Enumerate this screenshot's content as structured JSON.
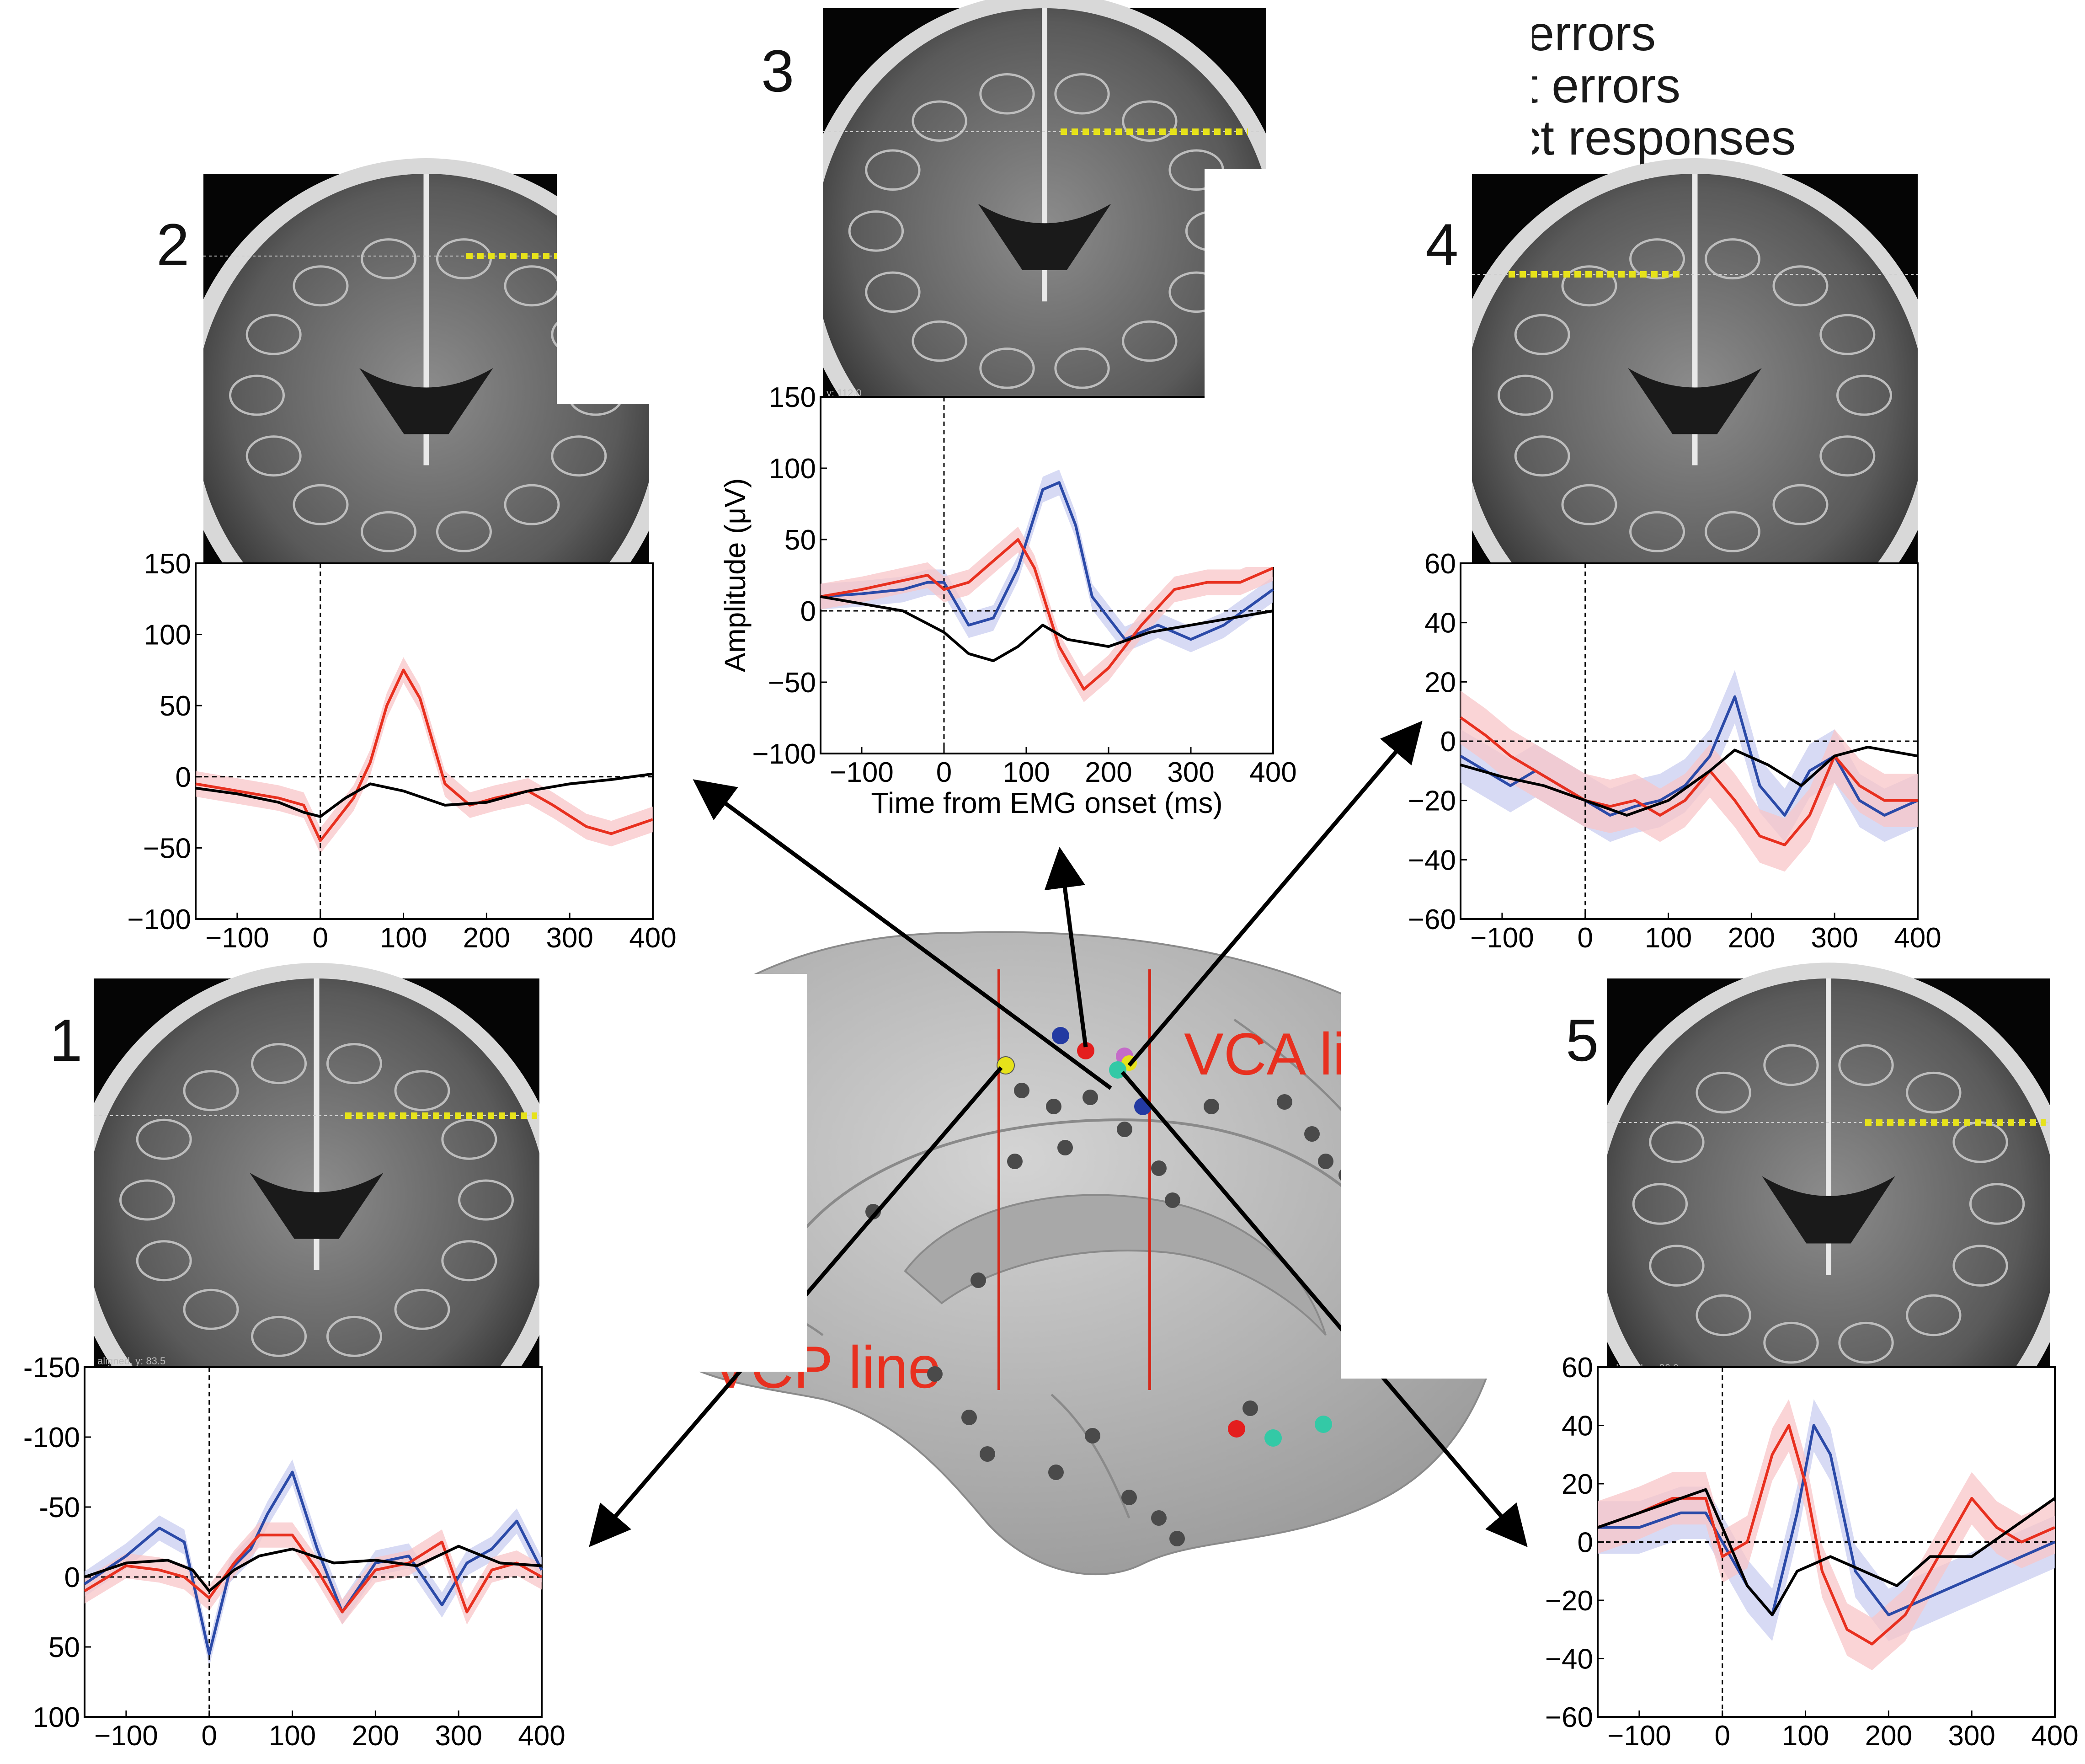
{
  "figure": {
    "legend": [
      {
        "label": "overt errors",
        "color": "#2b4aa8"
      },
      {
        "label": "covert errors",
        "color": "#e8301f"
      },
      {
        "label": "correct responses",
        "color": "#000000"
      }
    ],
    "brain_labels": {
      "vca": "VCA line",
      "vcp": "VCP line"
    },
    "colors": {
      "overt": "#2b4aa8",
      "covert": "#e8301f",
      "correct": "#000000",
      "overt_band": "#c9cdf0",
      "covert_band": "#f8c6c8",
      "mri_marker": "#e6e21a",
      "brain": "#b9b9b9"
    }
  },
  "chart_data": [
    {
      "panel": "1",
      "type": "line",
      "xlabel": "",
      "ylabel": "",
      "xlim": [
        -150,
        400
      ],
      "ylim": [
        100,
        -150
      ],
      "inverted_y": true,
      "xticks": [
        "−100",
        "0",
        "100",
        "200",
        "300",
        "400"
      ],
      "yticks": [
        "-150",
        "-100",
        "-50",
        "0",
        "50",
        "100"
      ],
      "series": [
        {
          "name": "overt errors",
          "x": [
            -150,
            -100,
            -60,
            -30,
            0,
            25,
            50,
            70,
            100,
            130,
            160,
            200,
            240,
            280,
            310,
            340,
            370,
            400
          ],
          "y": [
            5,
            -15,
            -35,
            -25,
            55,
            -5,
            -20,
            -45,
            -75,
            -20,
            25,
            -10,
            -15,
            20,
            -10,
            -20,
            -40,
            -5
          ]
        },
        {
          "name": "covert errors",
          "x": [
            -150,
            -100,
            -60,
            -30,
            0,
            30,
            60,
            100,
            130,
            160,
            200,
            240,
            280,
            310,
            340,
            370,
            400
          ],
          "y": [
            10,
            -8,
            -5,
            0,
            15,
            -10,
            -30,
            -30,
            -5,
            25,
            -5,
            -10,
            -25,
            25,
            -5,
            -10,
            0
          ]
        },
        {
          "name": "correct responses",
          "x": [
            -150,
            -100,
            -50,
            -20,
            0,
            30,
            60,
            100,
            150,
            200,
            250,
            300,
            350,
            400
          ],
          "y": [
            0,
            -10,
            -12,
            -5,
            10,
            -5,
            -15,
            -20,
            -10,
            -12,
            -8,
            -22,
            -10,
            -8
          ]
        }
      ],
      "mri_label": "aligned, y: 83.5"
    },
    {
      "panel": "2",
      "type": "line",
      "xlabel": "",
      "ylabel": "",
      "xlim": [
        -150,
        400
      ],
      "ylim": [
        -100,
        150
      ],
      "xticks": [
        "−100",
        "0",
        "100",
        "200",
        "300",
        "400"
      ],
      "yticks": [
        "150",
        "100",
        "50",
        "0",
        "−50",
        "−100"
      ],
      "series": [
        {
          "name": "covert errors",
          "x": [
            -150,
            -100,
            -50,
            -20,
            0,
            20,
            40,
            60,
            80,
            100,
            120,
            150,
            180,
            210,
            250,
            280,
            320,
            350,
            400
          ],
          "y": [
            -5,
            -10,
            -15,
            -20,
            -45,
            -30,
            -15,
            10,
            50,
            75,
            55,
            -5,
            -20,
            -15,
            -10,
            -20,
            -35,
            -40,
            -30
          ]
        },
        {
          "name": "correct responses",
          "x": [
            -150,
            -100,
            -50,
            -20,
            0,
            30,
            60,
            100,
            150,
            200,
            250,
            300,
            350,
            400
          ],
          "y": [
            -8,
            -12,
            -18,
            -25,
            -28,
            -15,
            -5,
            -10,
            -20,
            -18,
            -10,
            -5,
            -2,
            2
          ]
        }
      ],
      "mri_label": ""
    },
    {
      "panel": "3",
      "type": "line",
      "xlabel": "Time from EMG onset (ms)",
      "ylabel": "Amplitude (μV)",
      "xlim": [
        -150,
        400
      ],
      "ylim": [
        -100,
        150
      ],
      "xticks": [
        "−100",
        "0",
        "100",
        "200",
        "300",
        "400"
      ],
      "yticks": [
        "150",
        "100",
        "50",
        "0",
        "−50",
        "−100"
      ],
      "series": [
        {
          "name": "overt errors",
          "x": [
            -150,
            -100,
            -50,
            -20,
            0,
            30,
            60,
            90,
            120,
            140,
            160,
            180,
            220,
            260,
            300,
            340,
            400
          ],
          "y": [
            10,
            12,
            15,
            20,
            20,
            -10,
            -5,
            30,
            85,
            90,
            60,
            10,
            -20,
            -10,
            -20,
            -10,
            15
          ]
        },
        {
          "name": "covert errors",
          "x": [
            -150,
            -100,
            -60,
            -20,
            0,
            30,
            60,
            90,
            110,
            140,
            170,
            200,
            240,
            280,
            320,
            360,
            400
          ],
          "y": [
            10,
            15,
            20,
            25,
            15,
            20,
            35,
            50,
            30,
            -25,
            -55,
            -40,
            -10,
            15,
            20,
            20,
            30
          ]
        },
        {
          "name": "correct responses",
          "x": [
            -150,
            -100,
            -50,
            0,
            30,
            60,
            90,
            120,
            150,
            200,
            250,
            300,
            350,
            400
          ],
          "y": [
            10,
            5,
            0,
            -15,
            -30,
            -35,
            -25,
            -10,
            -20,
            -25,
            -15,
            -10,
            -5,
            0
          ]
        }
      ],
      "mri_label": "y: 112.0"
    },
    {
      "panel": "4",
      "type": "line",
      "xlabel": "",
      "ylabel": "",
      "xlim": [
        -150,
        400
      ],
      "ylim": [
        -60,
        60
      ],
      "xticks": [
        "−100",
        "0",
        "100",
        "200",
        "300",
        "400"
      ],
      "yticks": [
        "60",
        "40",
        "20",
        "0",
        "−20",
        "−40",
        "−60"
      ],
      "series": [
        {
          "name": "overt errors",
          "x": [
            -150,
            -120,
            -90,
            -60,
            -30,
            0,
            30,
            60,
            90,
            120,
            150,
            180,
            210,
            240,
            270,
            300,
            330,
            360,
            400
          ],
          "y": [
            -5,
            -10,
            -15,
            -10,
            -15,
            -20,
            -25,
            -22,
            -20,
            -15,
            -5,
            15,
            -15,
            -25,
            -10,
            -5,
            -20,
            -25,
            -20
          ]
        },
        {
          "name": "covert errors",
          "x": [
            -150,
            -120,
            -90,
            -60,
            -30,
            0,
            30,
            60,
            90,
            120,
            150,
            180,
            210,
            240,
            270,
            300,
            330,
            360,
            400
          ],
          "y": [
            8,
            2,
            -5,
            -10,
            -15,
            -20,
            -22,
            -20,
            -25,
            -20,
            -10,
            -20,
            -32,
            -35,
            -25,
            -5,
            -15,
            -20,
            -20
          ]
        },
        {
          "name": "correct responses",
          "x": [
            -150,
            -100,
            -50,
            0,
            50,
            100,
            150,
            180,
            220,
            260,
            300,
            340,
            400
          ],
          "y": [
            -8,
            -12,
            -15,
            -20,
            -25,
            -20,
            -10,
            -3,
            -8,
            -15,
            -5,
            -2,
            -5
          ]
        }
      ],
      "mri_label": ""
    },
    {
      "panel": "5",
      "type": "line",
      "xlabel": "",
      "ylabel": "",
      "xlim": [
        -150,
        400
      ],
      "ylim": [
        -60,
        60
      ],
      "xticks": [
        "−100",
        "0",
        "100",
        "200",
        "300",
        "400"
      ],
      "yticks": [
        "60",
        "40",
        "20",
        "0",
        "−20",
        "−40",
        "−60"
      ],
      "series": [
        {
          "name": "overt errors",
          "x": [
            -150,
            -100,
            -50,
            -20,
            0,
            30,
            60,
            90,
            110,
            130,
            160,
            200,
            240,
            280,
            320,
            360,
            400
          ],
          "y": [
            5,
            5,
            10,
            10,
            0,
            -15,
            -25,
            10,
            40,
            30,
            -10,
            -25,
            -20,
            -15,
            -10,
            -5,
            0
          ]
        },
        {
          "name": "covert errors",
          "x": [
            -150,
            -100,
            -60,
            -20,
            0,
            30,
            60,
            80,
            100,
            120,
            150,
            180,
            220,
            260,
            300,
            330,
            360,
            400
          ],
          "y": [
            5,
            10,
            15,
            15,
            -5,
            0,
            30,
            40,
            20,
            -10,
            -30,
            -35,
            -25,
            -5,
            15,
            5,
            0,
            5
          ]
        },
        {
          "name": "correct responses",
          "x": [
            -150,
            -100,
            -50,
            -20,
            0,
            30,
            60,
            90,
            130,
            170,
            210,
            250,
            300,
            350,
            400
          ],
          "y": [
            5,
            10,
            15,
            18,
            5,
            -15,
            -25,
            -10,
            -5,
            -10,
            -15,
            -5,
            -5,
            5,
            15
          ]
        }
      ],
      "mri_label": "aligned, y: 86.0"
    }
  ]
}
